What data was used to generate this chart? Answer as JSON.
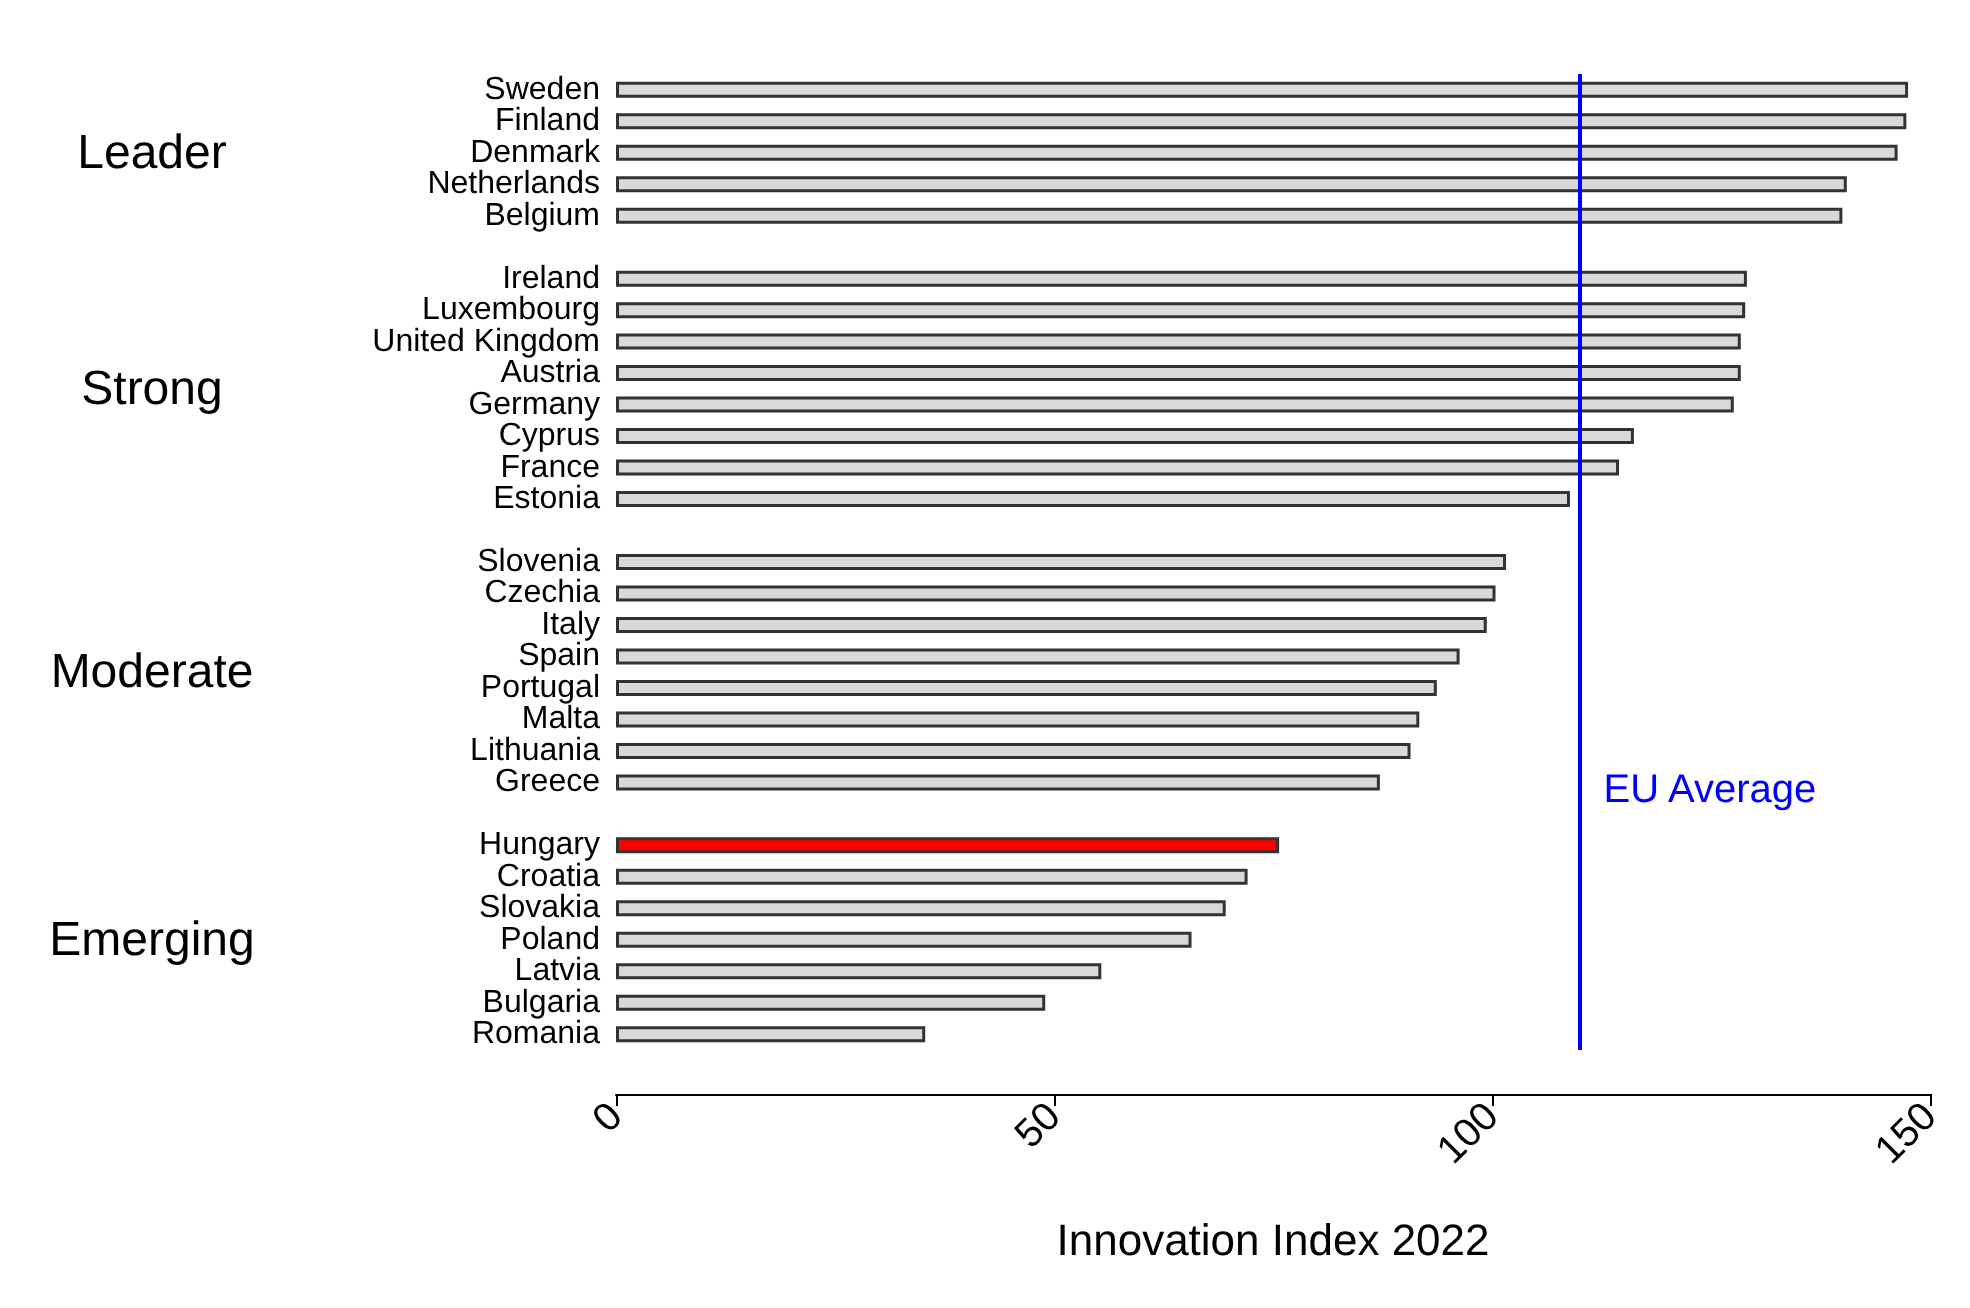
{
  "chart_data": {
    "type": "bar",
    "orientation": "horizontal",
    "xlabel": "Innovation Index 2022",
    "categories": [
      "Sweden",
      "Finland",
      "Denmark",
      "Netherlands",
      "Belgium",
      null,
      "Ireland",
      "Luxembourg",
      "United Kingdom",
      "Austria",
      "Germany",
      "Cyprus",
      "France",
      "Estonia",
      null,
      "Slovenia",
      "Czechia",
      "Italy",
      "Spain",
      "Portugal",
      "Malta",
      "Lithuania",
      "Greece",
      null,
      "Hungary",
      "Croatia",
      "Slovakia",
      "Poland",
      "Latvia",
      "Bulgaria",
      "Romania"
    ],
    "values": [
      147.5,
      147.3,
      146.3,
      140.5,
      140,
      null,
      129.1,
      128.9,
      128.4,
      128.4,
      127.6,
      116.2,
      114.5,
      108.9,
      null,
      101.6,
      100.4,
      99.4,
      96.3,
      93.7,
      91.7,
      90.7,
      87.2,
      null,
      75.7,
      72.1,
      69.6,
      65.7,
      55.4,
      49,
      35.3
    ],
    "colors": [
      "#d9d9d9",
      "#d9d9d9",
      "#d9d9d9",
      "#d9d9d9",
      "#d9d9d9",
      null,
      "#d9d9d9",
      "#d9d9d9",
      "#d9d9d9",
      "#d9d9d9",
      "#d9d9d9",
      "#d9d9d9",
      "#d9d9d9",
      "#d9d9d9",
      null,
      "#d9d9d9",
      "#d9d9d9",
      "#d9d9d9",
      "#d9d9d9",
      "#d9d9d9",
      "#d9d9d9",
      "#d9d9d9",
      "#d9d9d9",
      null,
      "#ff0000",
      "#d9d9d9",
      "#d9d9d9",
      "#d9d9d9",
      "#d9d9d9",
      "#d9d9d9",
      "#d9d9d9"
    ],
    "xlim": [
      0,
      150
    ],
    "xticks": [
      0,
      50,
      100,
      150
    ],
    "annotations": [
      "Leader",
      "Strong",
      "Moderate",
      "Emerging"
    ],
    "ref_lines": [
      {
        "axis": "x",
        "value": 110,
        "label": "EU Average",
        "color": "#0000ff"
      }
    ]
  }
}
